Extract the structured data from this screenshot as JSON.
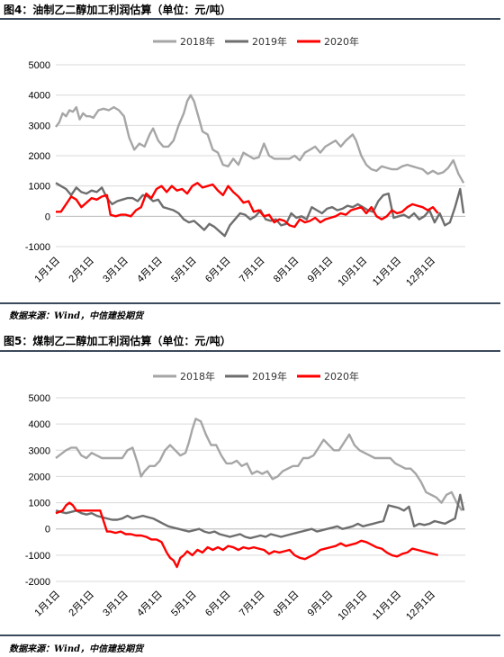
{
  "chart_data": [
    {
      "type": "line",
      "title": "图4：油制乙二醇加工利润估算（单位：元/吨）",
      "source": "数据来源：Wind，中信建投期货",
      "categories": [
        "1月1日",
        "2月1日",
        "3月1日",
        "4月1日",
        "5月1日",
        "6月1日",
        "7月1日",
        "8月1日",
        "9月1日",
        "10月1日",
        "11月1日",
        "12月1日"
      ],
      "ylim": [
        -1000,
        5000
      ],
      "yticks": [
        "5000",
        "4000",
        "3000",
        "2000",
        "1000",
        "0",
        "-1000"
      ],
      "grid": true,
      "legend_position": "top",
      "series": [
        {
          "name": "2018年",
          "color": "#a6a6a6",
          "x": [
            0,
            0.1,
            0.2,
            0.3,
            0.4,
            0.5,
            0.6,
            0.7,
            0.8,
            0.9,
            1.0,
            1.1,
            1.25,
            1.4,
            1.55,
            1.7,
            1.85,
            2.0,
            2.15,
            2.3,
            2.45,
            2.6,
            2.75,
            2.85,
            3.0,
            3.15,
            3.3,
            3.45,
            3.6,
            3.75,
            3.85,
            3.95,
            4.05,
            4.2,
            4.3,
            4.45,
            4.6,
            4.75,
            4.9,
            5.05,
            5.2,
            5.35,
            5.5,
            5.65,
            5.8,
            5.95,
            6.1,
            6.25,
            6.4,
            6.6,
            6.75,
            6.85,
            7.0,
            7.15,
            7.3,
            7.45,
            7.6,
            7.75,
            7.9,
            8.05,
            8.2,
            8.35,
            8.5,
            8.6,
            8.7,
            8.8,
            8.95,
            9.1,
            9.25,
            9.4,
            9.55,
            9.7,
            9.85,
            10.0,
            10.15,
            10.3,
            10.45,
            10.6,
            10.75,
            10.9,
            11.05,
            11.2,
            11.35,
            11.5,
            11.65,
            11.8,
            11.95
          ],
          "y": [
            2950,
            3100,
            3400,
            3300,
            3500,
            3450,
            3600,
            3200,
            3400,
            3300,
            3300,
            3250,
            3500,
            3550,
            3500,
            3600,
            3500,
            3300,
            2600,
            2200,
            2400,
            2300,
            2700,
            2900,
            2500,
            2300,
            2300,
            2500,
            3000,
            3400,
            3800,
            4000,
            3800,
            3200,
            2800,
            2700,
            2200,
            2100,
            1700,
            1650,
            1900,
            1700,
            2100,
            2000,
            1900,
            1950,
            2400,
            2000,
            1900,
            1900,
            1900,
            1900,
            2000,
            1850,
            2100,
            2200,
            2300,
            2100,
            2300,
            2400,
            2500,
            2300,
            2500,
            2600,
            2700,
            2500,
            2000,
            1700,
            1550,
            1500,
            1650,
            1600,
            1550,
            1550,
            1650,
            1700,
            1650,
            1600,
            1550,
            1400,
            1500,
            1400,
            1450,
            1600,
            1850,
            1400,
            1100
          ]
        },
        {
          "name": "2019年",
          "color": "#6e6e6e",
          "x": [
            0,
            0.15,
            0.3,
            0.45,
            0.6,
            0.75,
            0.9,
            1.05,
            1.2,
            1.35,
            1.5,
            1.65,
            1.8,
            1.95,
            2.1,
            2.25,
            2.4,
            2.55,
            2.7,
            2.85,
            3.0,
            3.15,
            3.3,
            3.45,
            3.6,
            3.75,
            3.9,
            4.05,
            4.2,
            4.35,
            4.5,
            4.65,
            4.8,
            4.95,
            5.1,
            5.25,
            5.4,
            5.55,
            5.7,
            5.85,
            6.0,
            6.15,
            6.3,
            6.45,
            6.6,
            6.75,
            6.9,
            7.05,
            7.2,
            7.35,
            7.5,
            7.65,
            7.8,
            7.95,
            8.1,
            8.25,
            8.4,
            8.55,
            8.7,
            8.85,
            9.0,
            9.15,
            9.3,
            9.45,
            9.6,
            9.75,
            9.9,
            10.05,
            10.2,
            10.35,
            10.5,
            10.65,
            10.8,
            10.95,
            11.1,
            11.25,
            11.4,
            11.55,
            11.7,
            11.85,
            11.95
          ],
          "y": [
            1100,
            1000,
            900,
            700,
            950,
            800,
            750,
            850,
            800,
            950,
            600,
            400,
            500,
            550,
            600,
            600,
            500,
            700,
            650,
            500,
            550,
            300,
            250,
            200,
            100,
            -100,
            -200,
            -150,
            -300,
            -450,
            -250,
            -350,
            -500,
            -650,
            -300,
            -100,
            100,
            50,
            -100,
            0,
            200,
            -100,
            -150,
            -100,
            -300,
            -250,
            100,
            -50,
            0,
            -100,
            300,
            200,
            100,
            250,
            300,
            200,
            250,
            350,
            300,
            400,
            300,
            200,
            150,
            500,
            700,
            750,
            -50,
            0,
            50,
            -50,
            100,
            -100,
            0,
            200,
            -200,
            100,
            -300,
            -200,
            300,
            900,
            100
          ]
        },
        {
          "name": "2020年",
          "color": "#ff0000",
          "x": [
            0,
            0.15,
            0.3,
            0.45,
            0.6,
            0.75,
            0.9,
            1.05,
            1.2,
            1.35,
            1.5,
            1.6,
            1.75,
            1.9,
            2.05,
            2.2,
            2.35,
            2.5,
            2.65,
            2.8,
            2.95,
            3.1,
            3.25,
            3.4,
            3.55,
            3.7,
            3.85,
            4.0,
            4.15,
            4.3,
            4.45,
            4.6,
            4.75,
            4.9,
            5.05,
            5.2,
            5.35,
            5.5,
            5.65,
            5.8,
            5.95,
            6.1,
            6.25,
            6.4,
            6.55,
            6.7,
            6.85,
            7.0,
            7.15,
            7.3,
            7.45,
            7.6,
            7.75,
            7.9,
            8.05,
            8.2,
            8.35,
            8.5,
            8.65,
            8.8,
            8.95,
            9.1,
            9.25,
            9.4,
            9.55,
            9.7,
            9.85,
            10.0,
            10.15,
            10.3,
            10.45,
            10.6,
            10.75,
            10.9,
            11.05,
            11.2
          ],
          "y": [
            150,
            150,
            400,
            650,
            550,
            300,
            450,
            600,
            550,
            650,
            700,
            50,
            0,
            50,
            50,
            0,
            200,
            300,
            750,
            600,
            900,
            1000,
            800,
            1000,
            850,
            900,
            750,
            1000,
            1100,
            950,
            1000,
            1050,
            850,
            700,
            1000,
            800,
            650,
            450,
            500,
            150,
            200,
            0,
            50,
            -200,
            -100,
            -150,
            -300,
            -350,
            -100,
            -200,
            -150,
            -50,
            -200,
            -100,
            -50,
            0,
            100,
            50,
            200,
            250,
            300,
            100,
            300,
            0,
            -100,
            0,
            200,
            100,
            150,
            300,
            400,
            350,
            300,
            200,
            300,
            100
          ]
        }
      ]
    },
    {
      "type": "line",
      "title": "图5：煤制乙二醇加工利润估算（单位：元/吨）",
      "source": "数据来源：Wind，中信建投期货",
      "categories": [
        "1月1日",
        "2月1日",
        "3月1日",
        "4月1日",
        "5月1日",
        "6月1日",
        "7月1日",
        "8月1日",
        "9月1日",
        "10月1日",
        "11月1日",
        "12月1日"
      ],
      "ylim": [
        -2000,
        5000
      ],
      "yticks": [
        "5000",
        "4000",
        "3000",
        "2000",
        "1000",
        "0",
        "-1000",
        "-2000"
      ],
      "grid": true,
      "legend_position": "top",
      "series": [
        {
          "name": "2018年",
          "color": "#a6a6a6",
          "x": [
            0,
            0.1,
            0.2,
            0.3,
            0.45,
            0.6,
            0.75,
            0.9,
            1.05,
            1.2,
            1.35,
            1.5,
            1.65,
            1.8,
            1.95,
            2.1,
            2.25,
            2.4,
            2.5,
            2.6,
            2.75,
            2.9,
            3.05,
            3.2,
            3.35,
            3.5,
            3.65,
            3.8,
            3.9,
            4.0,
            4.1,
            4.25,
            4.4,
            4.55,
            4.7,
            4.85,
            5.0,
            5.15,
            5.3,
            5.45,
            5.6,
            5.75,
            5.9,
            6.05,
            6.2,
            6.35,
            6.5,
            6.65,
            6.8,
            6.95,
            7.1,
            7.25,
            7.4,
            7.55,
            7.7,
            7.85,
            8.0,
            8.15,
            8.3,
            8.45,
            8.6,
            8.75,
            8.9,
            9.05,
            9.2,
            9.35,
            9.5,
            9.65,
            9.8,
            9.95,
            10.1,
            10.25,
            10.4,
            10.55,
            10.7,
            10.85,
            11.0,
            11.15,
            11.3,
            11.45,
            11.6,
            11.75,
            11.9
          ],
          "y": [
            2700,
            2800,
            2900,
            3000,
            3100,
            3100,
            2800,
            2700,
            2900,
            2800,
            2700,
            2700,
            2700,
            2700,
            2700,
            3000,
            3100,
            2500,
            2000,
            2200,
            2400,
            2400,
            2600,
            3000,
            3200,
            3000,
            2800,
            2900,
            3300,
            3800,
            4200,
            4100,
            3600,
            3200,
            3200,
            2800,
            2500,
            2500,
            2600,
            2400,
            2500,
            2100,
            2200,
            2100,
            2200,
            1900,
            2000,
            2200,
            2300,
            2400,
            2400,
            2700,
            2700,
            2800,
            3100,
            3400,
            3200,
            3000,
            3000,
            3300,
            3600,
            3200,
            3000,
            2900,
            2800,
            2700,
            2700,
            2700,
            2700,
            2500,
            2400,
            2300,
            2300,
            2100,
            1800,
            1400,
            1300,
            1200,
            1000,
            1300,
            1400,
            1000,
            700
          ]
        },
        {
          "name": "2019年",
          "color": "#6e6e6e",
          "x": [
            0,
            0.15,
            0.3,
            0.45,
            0.6,
            0.75,
            0.9,
            1.05,
            1.2,
            1.35,
            1.5,
            1.65,
            1.8,
            1.95,
            2.1,
            2.25,
            2.4,
            2.55,
            2.7,
            2.85,
            3.0,
            3.15,
            3.3,
            3.45,
            3.6,
            3.75,
            3.9,
            4.05,
            4.2,
            4.35,
            4.5,
            4.65,
            4.8,
            4.95,
            5.1,
            5.25,
            5.4,
            5.55,
            5.7,
            5.85,
            6.0,
            6.15,
            6.3,
            6.45,
            6.6,
            6.75,
            6.9,
            7.05,
            7.2,
            7.35,
            7.5,
            7.65,
            7.8,
            7.95,
            8.1,
            8.25,
            8.4,
            8.55,
            8.7,
            8.85,
            9.0,
            9.15,
            9.3,
            9.45,
            9.6,
            9.75,
            9.9,
            10.05,
            10.2,
            10.35,
            10.5,
            10.65,
            10.8,
            10.95,
            11.1,
            11.25,
            11.4,
            11.55,
            11.7,
            11.85,
            11.95
          ],
          "y": [
            700,
            650,
            600,
            650,
            700,
            600,
            550,
            600,
            500,
            450,
            400,
            350,
            350,
            400,
            500,
            400,
            450,
            500,
            450,
            400,
            300,
            200,
            100,
            50,
            0,
            -50,
            -100,
            -50,
            0,
            -100,
            -150,
            -100,
            -200,
            -250,
            -300,
            -250,
            -200,
            -300,
            -350,
            -300,
            -250,
            -300,
            -200,
            -250,
            -300,
            -250,
            -200,
            -150,
            -100,
            -50,
            0,
            -100,
            -50,
            0,
            50,
            100,
            0,
            50,
            100,
            200,
            100,
            150,
            200,
            250,
            300,
            900,
            850,
            800,
            700,
            850,
            100,
            200,
            150,
            200,
            300,
            250,
            200,
            300,
            400,
            1300,
            700
          ]
        },
        {
          "name": "2020年",
          "color": "#ff0000",
          "x": [
            0,
            0.1,
            0.2,
            0.3,
            0.4,
            0.5,
            0.6,
            0.7,
            0.85,
            1.0,
            1.15,
            1.3,
            1.5,
            1.6,
            1.75,
            1.9,
            2.05,
            2.2,
            2.35,
            2.5,
            2.65,
            2.8,
            2.95,
            3.1,
            3.25,
            3.35,
            3.45,
            3.55,
            3.65,
            3.75,
            3.85,
            4.0,
            4.15,
            4.3,
            4.45,
            4.6,
            4.75,
            4.9,
            5.05,
            5.2,
            5.35,
            5.5,
            5.65,
            5.8,
            5.95,
            6.1,
            6.25,
            6.4,
            6.55,
            6.7,
            6.85,
            7.0,
            7.15,
            7.3,
            7.45,
            7.6,
            7.75,
            7.9,
            8.05,
            8.2,
            8.35,
            8.5,
            8.65,
            8.8,
            8.95,
            9.1,
            9.25,
            9.4,
            9.55,
            9.7,
            9.85,
            10.0,
            10.15,
            10.3,
            10.45,
            10.6,
            10.75,
            10.9,
            11.05,
            11.2
          ],
          "y": [
            600,
            650,
            700,
            900,
            1000,
            900,
            700,
            700,
            700,
            700,
            700,
            700,
            -100,
            -100,
            -150,
            -100,
            -200,
            -200,
            -250,
            -250,
            -300,
            -400,
            -400,
            -500,
            -900,
            -1100,
            -1200,
            -1450,
            -1100,
            -1000,
            -850,
            -1000,
            -800,
            -900,
            -700,
            -800,
            -700,
            -800,
            -650,
            -700,
            -800,
            -700,
            -750,
            -700,
            -750,
            -800,
            -950,
            -850,
            -900,
            -850,
            -800,
            -1000,
            -1100,
            -1150,
            -1050,
            -950,
            -800,
            -750,
            -700,
            -650,
            -550,
            -650,
            -600,
            -550,
            -450,
            -500,
            -600,
            -700,
            -750,
            -900,
            -1000,
            -1050,
            -950,
            -900,
            -750,
            -800,
            -850,
            -900,
            -950,
            -1000
          ]
        }
      ]
    }
  ]
}
